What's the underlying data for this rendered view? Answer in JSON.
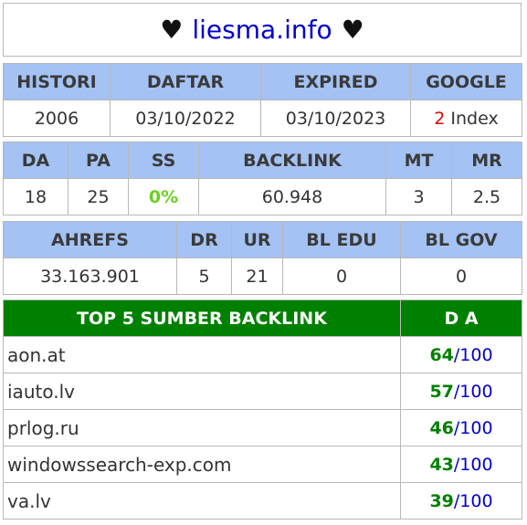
{
  "title": {
    "heart_left": "♥",
    "domain": "liesma.info",
    "heart_right": "♥"
  },
  "table1": {
    "headers": [
      "HISTORI",
      "DAFTAR",
      "EXPIRED",
      "GOOGLE"
    ],
    "values": {
      "histori": "2006",
      "daftar": "03/10/2022",
      "expired": "03/10/2023",
      "google_count": "2",
      "google_label": "Index"
    }
  },
  "table2": {
    "headers": [
      "DA",
      "PA",
      "SS",
      "BACKLINK",
      "MT",
      "MR"
    ],
    "values": [
      "18",
      "25",
      "0%",
      "60.948",
      "3",
      "2.5"
    ]
  },
  "table3": {
    "headers": [
      "AHREFS",
      "DR",
      "UR",
      "BL EDU",
      "BL GOV"
    ],
    "values": [
      "33.163.901",
      "5",
      "21",
      "0",
      "0"
    ]
  },
  "backlinks": {
    "header_title": "TOP 5 SUMBER BACKLINK",
    "header_da": "D A",
    "rows": [
      {
        "site": "aon.at",
        "da": "64",
        "max": "100"
      },
      {
        "site": "iauto.lv",
        "da": "57",
        "max": "100"
      },
      {
        "site": "prlog.ru",
        "da": "46",
        "max": "100"
      },
      {
        "site": "windowssearch-exp.com",
        "da": "43",
        "max": "100"
      },
      {
        "site": "va.lv",
        "da": "39",
        "max": "100"
      }
    ],
    "separator": "/"
  },
  "colors": {
    "header_blue": "#a4c2f4",
    "header_green": "#008000",
    "domain_blue": "#0000cc",
    "red": "#e00000",
    "bright_green": "#6ad11f"
  }
}
